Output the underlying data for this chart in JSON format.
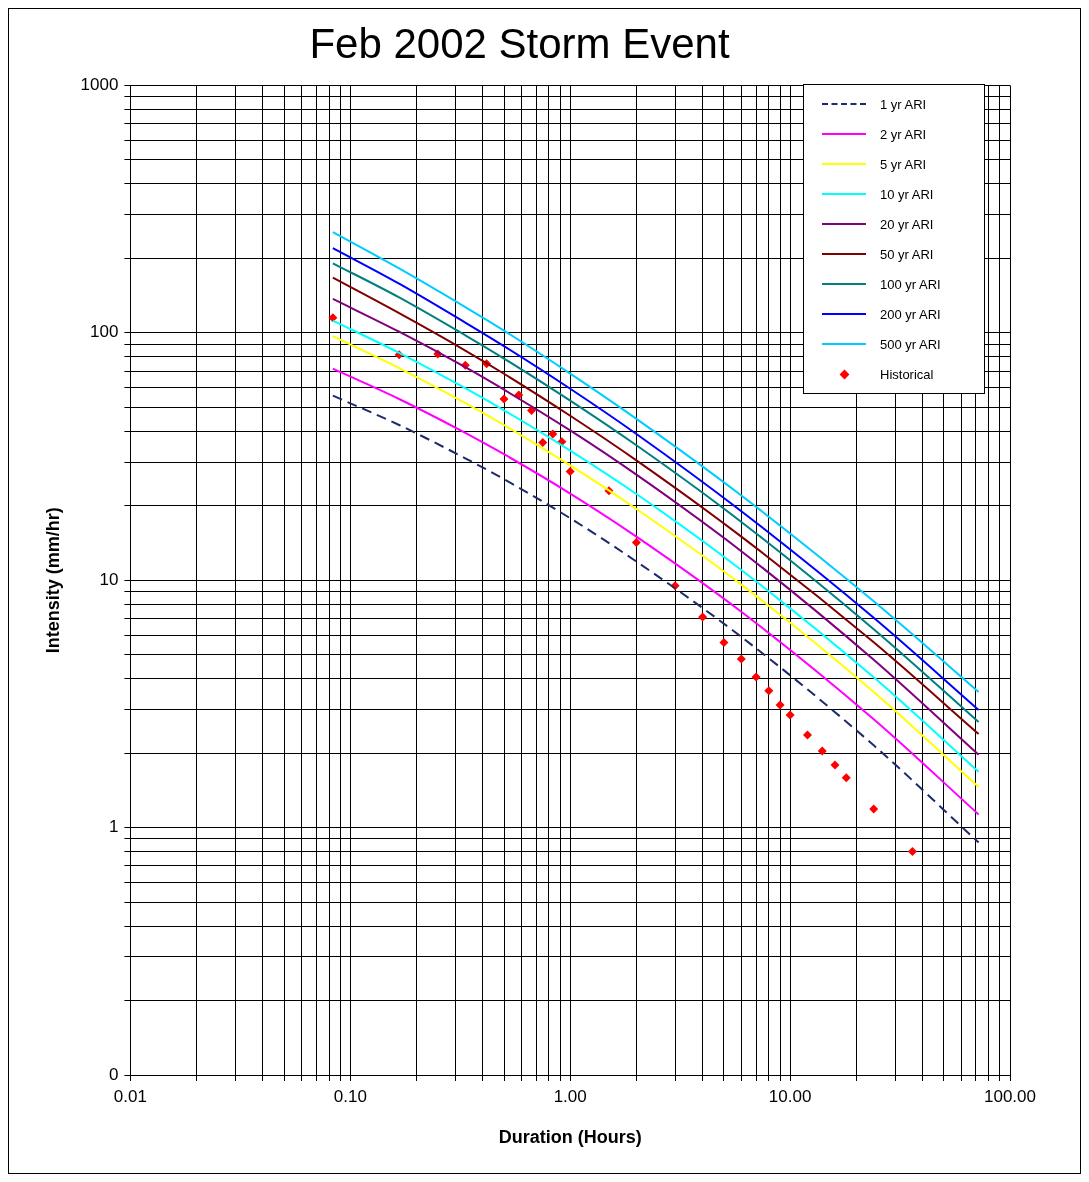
{
  "chart_data": {
    "type": "line",
    "title": "Feb 2002 Storm Event",
    "xlabel": "Duration (Hours)",
    "ylabel": "Intensity (mm/hr)",
    "log": "xy",
    "xlim": [
      0.01,
      100
    ],
    "ylim": [
      0.1,
      1000
    ],
    "xticks": [
      {
        "value": 0.01,
        "label": "0.01"
      },
      {
        "value": 0.1,
        "label": "0.10"
      },
      {
        "value": 1,
        "label": "1.00"
      },
      {
        "value": 10,
        "label": "10.00"
      },
      {
        "value": 100,
        "label": "100.00"
      }
    ],
    "yticks": [
      {
        "value": 0.1,
        "label": "0"
      },
      1,
      10,
      100,
      1000
    ],
    "grid": true,
    "legend": "top right",
    "marker": "none",
    "line_style": "solid",
    "x": [
      0.0833,
      0.1667,
      0.3333,
      0.5,
      1,
      2,
      6,
      24,
      72
    ],
    "series": [
      {
        "name": "1 yr ARI",
        "color": "#1f2a6b",
        "line_style": "dashed",
        "values": [
          55.7,
          42.4,
          31.1,
          25.6,
          17.8,
          11.9,
          5.9,
          2.15,
          0.87
        ]
      },
      {
        "name": "2 yr ARI",
        "color": "#ff00ff",
        "values": [
          71.6,
          54,
          39.4,
          32.3,
          22.4,
          15,
          7.45,
          2.74,
          1.13
        ]
      },
      {
        "name": "5 yr ARI",
        "color": "#ffff00",
        "values": [
          97,
          72,
          52,
          42.4,
          29.1,
          19.4,
          9.6,
          3.53,
          1.46
        ]
      },
      {
        "name": "10 yr ARI",
        "color": "#00ffff",
        "values": [
          112,
          83,
          59.7,
          48.6,
          33.4,
          22.3,
          11,
          4.05,
          1.68
        ]
      },
      {
        "name": "20 yr ARI",
        "color": "#800080",
        "values": [
          137,
          101,
          72.6,
          58.9,
          40.3,
          26.7,
          13.1,
          4.77,
          1.97
        ]
      },
      {
        "name": "50 yr ARI",
        "color": "#800000",
        "values": [
          167,
          120,
          84.8,
          68.3,
          46.2,
          30.5,
          15,
          5.61,
          2.39
        ]
      },
      {
        "name": "100 yr ARI",
        "color": "#008080",
        "values": [
          191,
          139,
          97.7,
          78.7,
          53.2,
          35.1,
          17.2,
          6.34,
          2.67
        ]
      },
      {
        "name": "200 yr ARI",
        "color": "#0000ff",
        "values": [
          220,
          158,
          110,
          88.3,
          59.4,
          39,
          19,
          7.05,
          2.99
        ]
      },
      {
        "name": "500 yr ARI",
        "color": "#00ccff",
        "values": [
          255,
          182,
          127,
          102,
          68.4,
          44.9,
          22,
          8.22,
          3.53
        ]
      },
      {
        "name": "Historical",
        "type": "scatter",
        "color": "#ff0000",
        "marker": "diamond",
        "x": [
          0.0833,
          0.1667,
          0.25,
          0.3333,
          0.4167,
          0.5,
          0.5833,
          0.6667,
          0.75,
          0.8333,
          0.9167,
          1,
          1.5,
          2,
          3,
          4,
          5,
          6,
          7,
          8,
          9,
          10,
          12,
          14,
          16,
          18,
          24,
          36
        ],
        "values": [
          115,
          81.5,
          82,
          74,
          75,
          54,
          56,
          48.5,
          36,
          39,
          36.3,
          27.5,
          23,
          14.2,
          9.5,
          7.1,
          5.6,
          4.8,
          4.06,
          3.57,
          3.13,
          2.85,
          2.37,
          2.04,
          1.79,
          1.59,
          1.19,
          0.8
        ]
      }
    ]
  }
}
